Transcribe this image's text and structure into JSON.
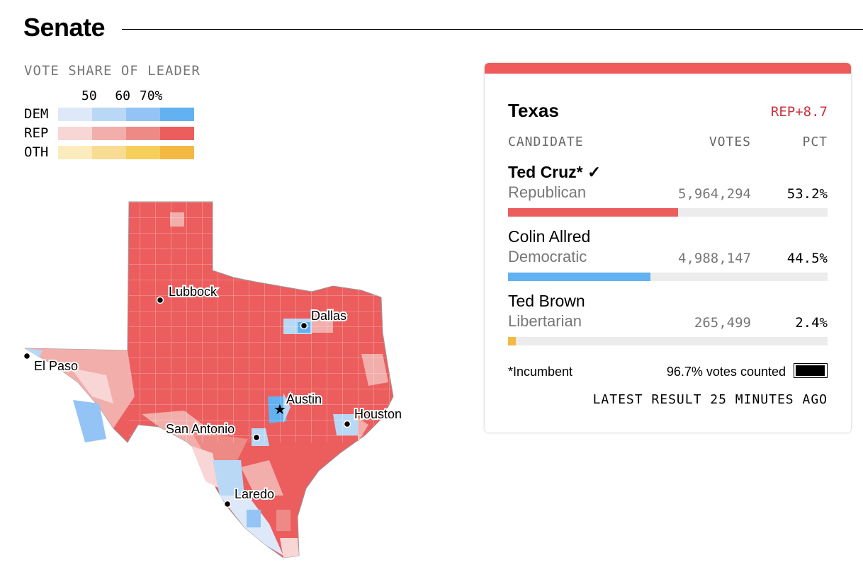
{
  "title": "Senate",
  "legend": {
    "title": "VOTE SHARE OF LEADER",
    "ticks": "50  60 70%",
    "rows": [
      {
        "label": "DEM",
        "colors": [
          "#dde9f9",
          "#b9d8f5",
          "#94c4f5",
          "#62b1f0"
        ]
      },
      {
        "label": "REP",
        "colors": [
          "#f8d6d5",
          "#f2aeab",
          "#ee8a86",
          "#ec5d5e"
        ]
      },
      {
        "label": "OTH",
        "colors": [
          "#fbecbd",
          "#f8dc93",
          "#f6cf5a",
          "#f4b942"
        ]
      }
    ]
  },
  "map": {
    "cities": [
      {
        "name": "Lubbock",
        "marker": "dot"
      },
      {
        "name": "Dallas",
        "marker": "dot"
      },
      {
        "name": "El Paso",
        "marker": "dot"
      },
      {
        "name": "Austin",
        "marker": "star"
      },
      {
        "name": "Houston",
        "marker": "dot"
      },
      {
        "name": "San Antonio",
        "marker": "dot"
      },
      {
        "name": "Laredo",
        "marker": "dot"
      }
    ]
  },
  "card": {
    "state": "Texas",
    "margin": "REP+8.7",
    "headers": {
      "candidate": "CANDIDATE",
      "votes": "VOTES",
      "pct": "PCT"
    },
    "candidates": [
      {
        "name": "Ted Cruz*",
        "winner_mark": "✓",
        "party": "Republican",
        "votes": "5,964,294",
        "pct": "53.2%",
        "share": 53.2,
        "color": "#ec5d5e",
        "bold": true
      },
      {
        "name": "Colin Allred",
        "party": "Democratic",
        "votes": "4,988,147",
        "pct": "44.5%",
        "share": 44.5,
        "color": "#62b1f0"
      },
      {
        "name": "Ted Brown",
        "party": "Libertarian",
        "votes": "265,499",
        "pct": "2.4%",
        "share": 2.4,
        "color": "#f4b942"
      }
    ],
    "incumbent_note": "*Incumbent",
    "counted": "96.7% votes counted",
    "counted_share": 96.7,
    "latest": "LATEST RESULT 25 MINUTES AGO"
  }
}
